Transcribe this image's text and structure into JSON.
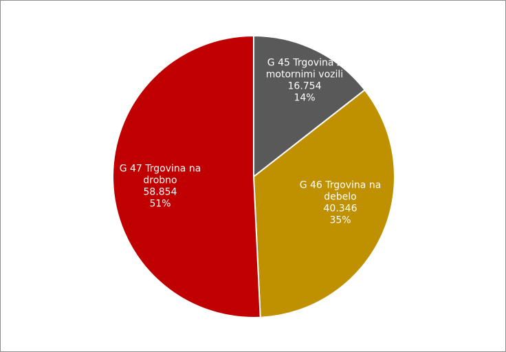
{
  "chart_data": {
    "type": "pie",
    "title": "",
    "legend": "none",
    "slices": [
      {
        "name_lines": [
          "G 45 Trgovina z",
          "motornimi vozili"
        ],
        "value": 16754,
        "value_label": "16.754",
        "percent_label": "14%",
        "color": "#595959"
      },
      {
        "name_lines": [
          "G 46 Trgovina na",
          "debelo"
        ],
        "value": 40346,
        "value_label": "40.346",
        "percent_label": "35%",
        "color": "#bf9000"
      },
      {
        "name_lines": [
          "G 47 Trgovina na",
          "drobno"
        ],
        "value": 58854,
        "value_label": "58.854",
        "percent_label": "51%",
        "color": "#c00000"
      }
    ]
  }
}
